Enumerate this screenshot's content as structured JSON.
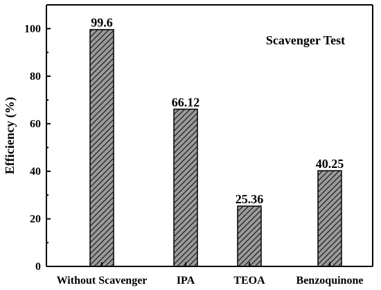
{
  "chart_data": {
    "type": "bar",
    "title": "Scavenger Test",
    "xlabel": "",
    "ylabel": "Efficiency (%)",
    "categories": [
      "Without Scavenger",
      "IPA",
      "TEOA",
      "Benzoquinone"
    ],
    "values": [
      99.6,
      66.12,
      25.36,
      40.25
    ],
    "data_labels": [
      "99.6",
      "66.12",
      "25.36",
      "40.25"
    ],
    "ylim": [
      0,
      110
    ],
    "yticks": [
      0,
      20,
      40,
      60,
      80,
      100
    ],
    "ytick_labels": [
      "0",
      "20",
      "40",
      "60",
      "80",
      "100"
    ],
    "bar_fill": "hatched",
    "bar_color": "#9a9a9a",
    "grid": false,
    "legend": "none"
  }
}
